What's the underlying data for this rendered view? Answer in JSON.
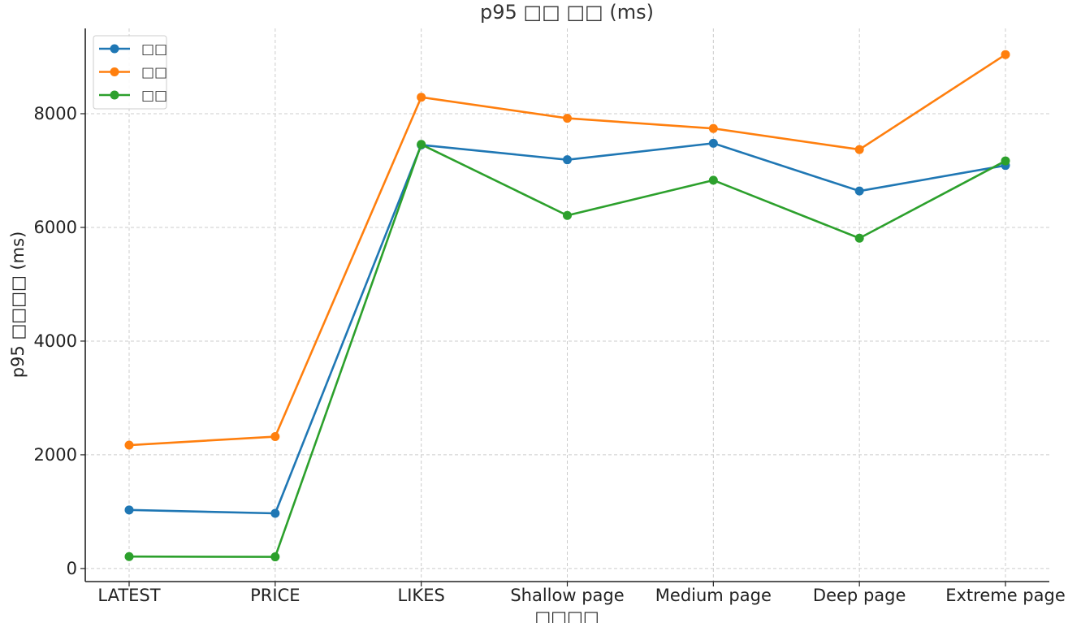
{
  "chart_data": {
    "type": "line",
    "title": "p95 □□ □□ (ms)",
    "xlabel": "□□□□",
    "ylabel": "p95 □□□□ (ms)",
    "categories": [
      "LATEST",
      "PRICE",
      "LIKES",
      "Shallow page",
      "Medium page",
      "Deep page",
      "Extreme page"
    ],
    "ylim": [
      -230,
      9500
    ],
    "yticks": [
      0,
      2000,
      4000,
      6000,
      8000
    ],
    "grid": true,
    "legend_position": "top-left",
    "series": [
      {
        "name": "□□",
        "color": "#1f77b4",
        "values": [
          1030,
          970,
          7450,
          7190,
          7480,
          6640,
          7090
        ]
      },
      {
        "name": "□□",
        "color": "#ff7f0e",
        "values": [
          2170,
          2320,
          8290,
          7920,
          7740,
          7370,
          9040
        ]
      },
      {
        "name": "□□",
        "color": "#2ca02c",
        "values": [
          210,
          205,
          7460,
          6210,
          6830,
          5810,
          7170
        ]
      }
    ]
  }
}
